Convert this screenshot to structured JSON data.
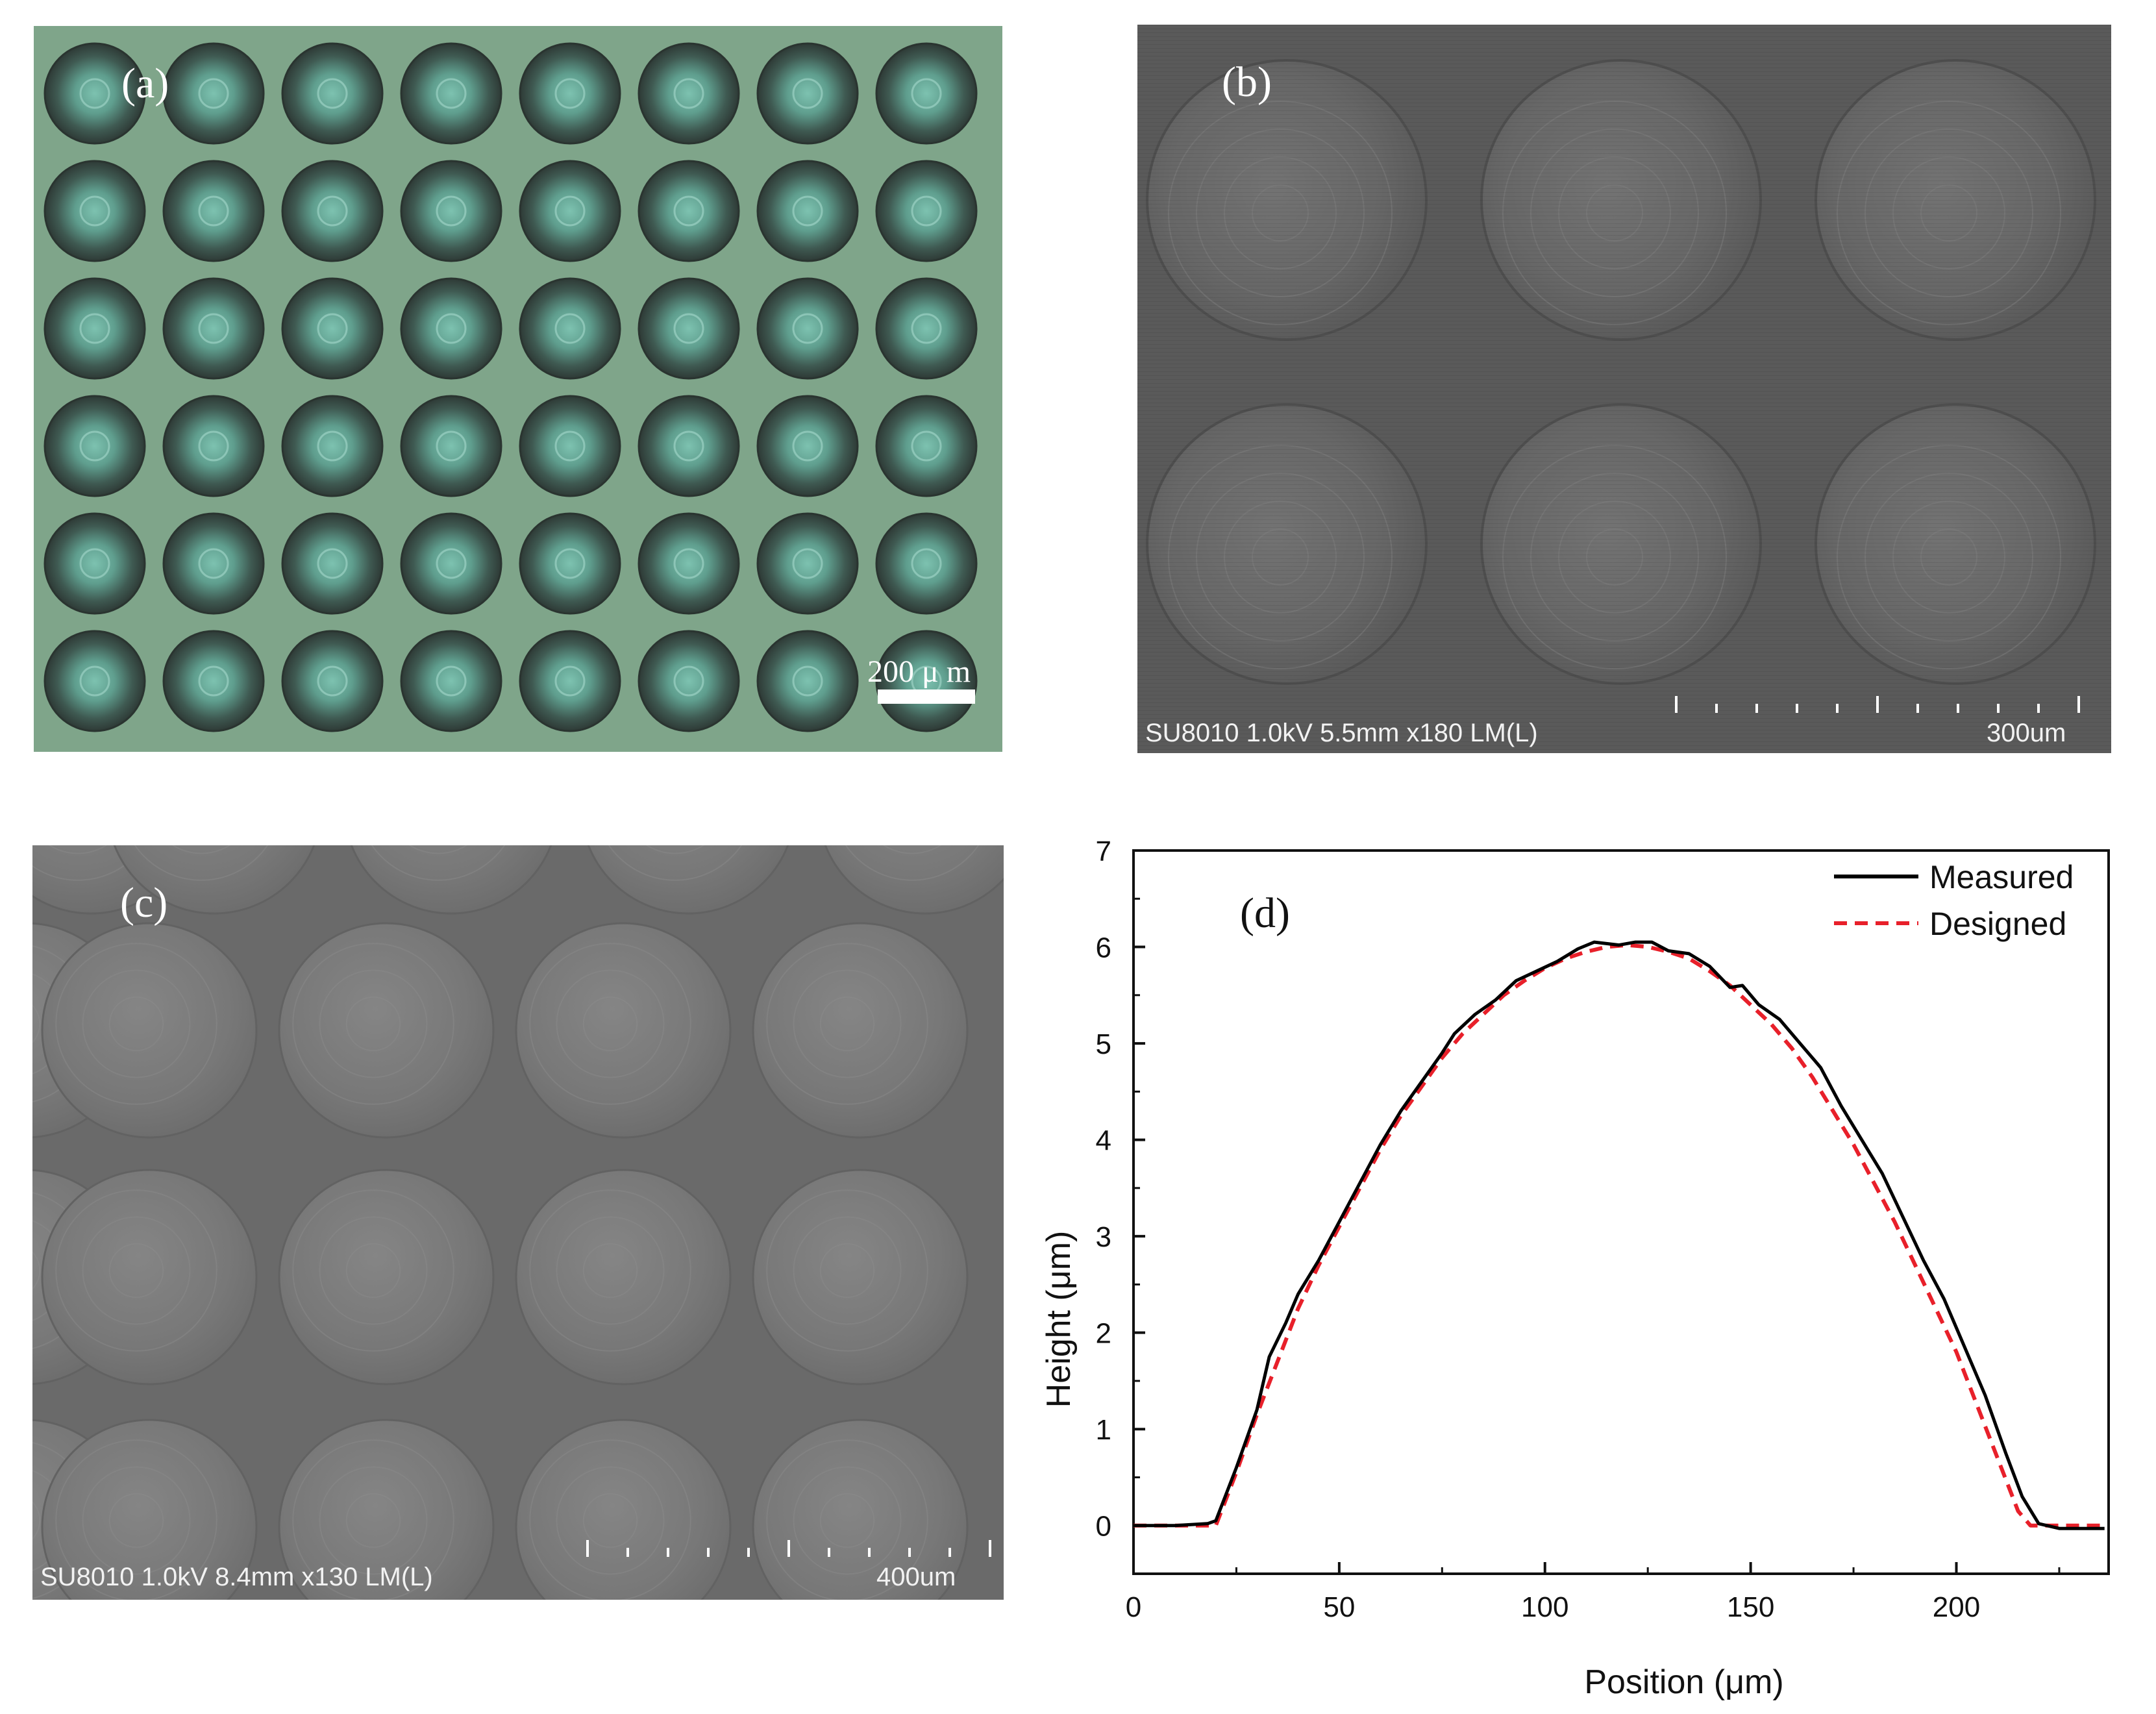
{
  "panels": {
    "a": {
      "label": "(a)",
      "scale_bar": "200 μ m",
      "colors": {
        "background": "#7fa58a",
        "lens_rim": "#3c4a46",
        "lens_center": "#6fb5a6"
      },
      "grid": {
        "rows": 6,
        "cols": 8
      }
    },
    "b": {
      "label": "(b)",
      "sem_info": "SU8010 1.0kV 5.5mm x180 LM(L)",
      "scale_label": "300um",
      "colors": {
        "background": "#5a5a5a",
        "lens": "#6e6e6e"
      }
    },
    "c": {
      "label": "(c)",
      "sem_info": "SU8010 1.0kV 8.4mm x130 LM(L)",
      "scale_label": "400um",
      "colors": {
        "background": "#6a6a6a",
        "lens": "#7a7a7a"
      }
    },
    "d": {
      "label": "(d)"
    }
  },
  "chart_data": {
    "type": "line",
    "xlabel": "Position (μm)",
    "ylabel": "Height (μm)",
    "xlim": [
      0,
      237
    ],
    "ylim": [
      -0.5,
      7
    ],
    "xticks": [
      0,
      50,
      100,
      150,
      200
    ],
    "yticks": [
      0,
      1,
      2,
      3,
      4,
      5,
      6,
      7
    ],
    "legend_position": "top-right",
    "series": [
      {
        "name": "Measured",
        "color": "#000000",
        "style": "solid",
        "points": [
          [
            0,
            0
          ],
          [
            10,
            0
          ],
          [
            18,
            0.02
          ],
          [
            20,
            0.05
          ],
          [
            25,
            0.6
          ],
          [
            30,
            1.2
          ],
          [
            33,
            1.75
          ],
          [
            37,
            2.1
          ],
          [
            40,
            2.4
          ],
          [
            45,
            2.75
          ],
          [
            50,
            3.15
          ],
          [
            55,
            3.55
          ],
          [
            60,
            3.95
          ],
          [
            65,
            4.3
          ],
          [
            70,
            4.6
          ],
          [
            75,
            4.9
          ],
          [
            78,
            5.1
          ],
          [
            83,
            5.3
          ],
          [
            88,
            5.45
          ],
          [
            93,
            5.65
          ],
          [
            98,
            5.75
          ],
          [
            103,
            5.85
          ],
          [
            108,
            5.98
          ],
          [
            112,
            6.05
          ],
          [
            118,
            6.02
          ],
          [
            122,
            6.05
          ],
          [
            126,
            6.05
          ],
          [
            130,
            5.96
          ],
          [
            135,
            5.93
          ],
          [
            140,
            5.8
          ],
          [
            145,
            5.58
          ],
          [
            148,
            5.6
          ],
          [
            152,
            5.4
          ],
          [
            157,
            5.25
          ],
          [
            162,
            5.0
          ],
          [
            167,
            4.75
          ],
          [
            172,
            4.35
          ],
          [
            177,
            4.0
          ],
          [
            182,
            3.65
          ],
          [
            187,
            3.2
          ],
          [
            192,
            2.75
          ],
          [
            197,
            2.35
          ],
          [
            202,
            1.85
          ],
          [
            207,
            1.35
          ],
          [
            212,
            0.75
          ],
          [
            216,
            0.3
          ],
          [
            220,
            0.02
          ],
          [
            225,
            -0.03
          ],
          [
            236,
            -0.03
          ]
        ]
      },
      {
        "name": "Designed",
        "color": "#e8202a",
        "style": "dashed",
        "points": [
          [
            0,
            0
          ],
          [
            20,
            0
          ],
          [
            25,
            0.55
          ],
          [
            30,
            1.15
          ],
          [
            35,
            1.7
          ],
          [
            40,
            2.25
          ],
          [
            45,
            2.7
          ],
          [
            50,
            3.1
          ],
          [
            55,
            3.5
          ],
          [
            60,
            3.9
          ],
          [
            65,
            4.25
          ],
          [
            70,
            4.55
          ],
          [
            75,
            4.85
          ],
          [
            80,
            5.1
          ],
          [
            85,
            5.3
          ],
          [
            90,
            5.5
          ],
          [
            95,
            5.65
          ],
          [
            100,
            5.78
          ],
          [
            105,
            5.88
          ],
          [
            110,
            5.95
          ],
          [
            115,
            6.0
          ],
          [
            120,
            6.02
          ],
          [
            125,
            6.0
          ],
          [
            130,
            5.95
          ],
          [
            135,
            5.88
          ],
          [
            140,
            5.75
          ],
          [
            145,
            5.6
          ],
          [
            150,
            5.4
          ],
          [
            155,
            5.2
          ],
          [
            160,
            4.95
          ],
          [
            165,
            4.65
          ],
          [
            170,
            4.3
          ],
          [
            175,
            3.95
          ],
          [
            180,
            3.55
          ],
          [
            185,
            3.15
          ],
          [
            190,
            2.7
          ],
          [
            195,
            2.25
          ],
          [
            200,
            1.8
          ],
          [
            205,
            1.25
          ],
          [
            210,
            0.7
          ],
          [
            215,
            0.15
          ],
          [
            218,
            0
          ],
          [
            236,
            0
          ]
        ]
      }
    ]
  }
}
